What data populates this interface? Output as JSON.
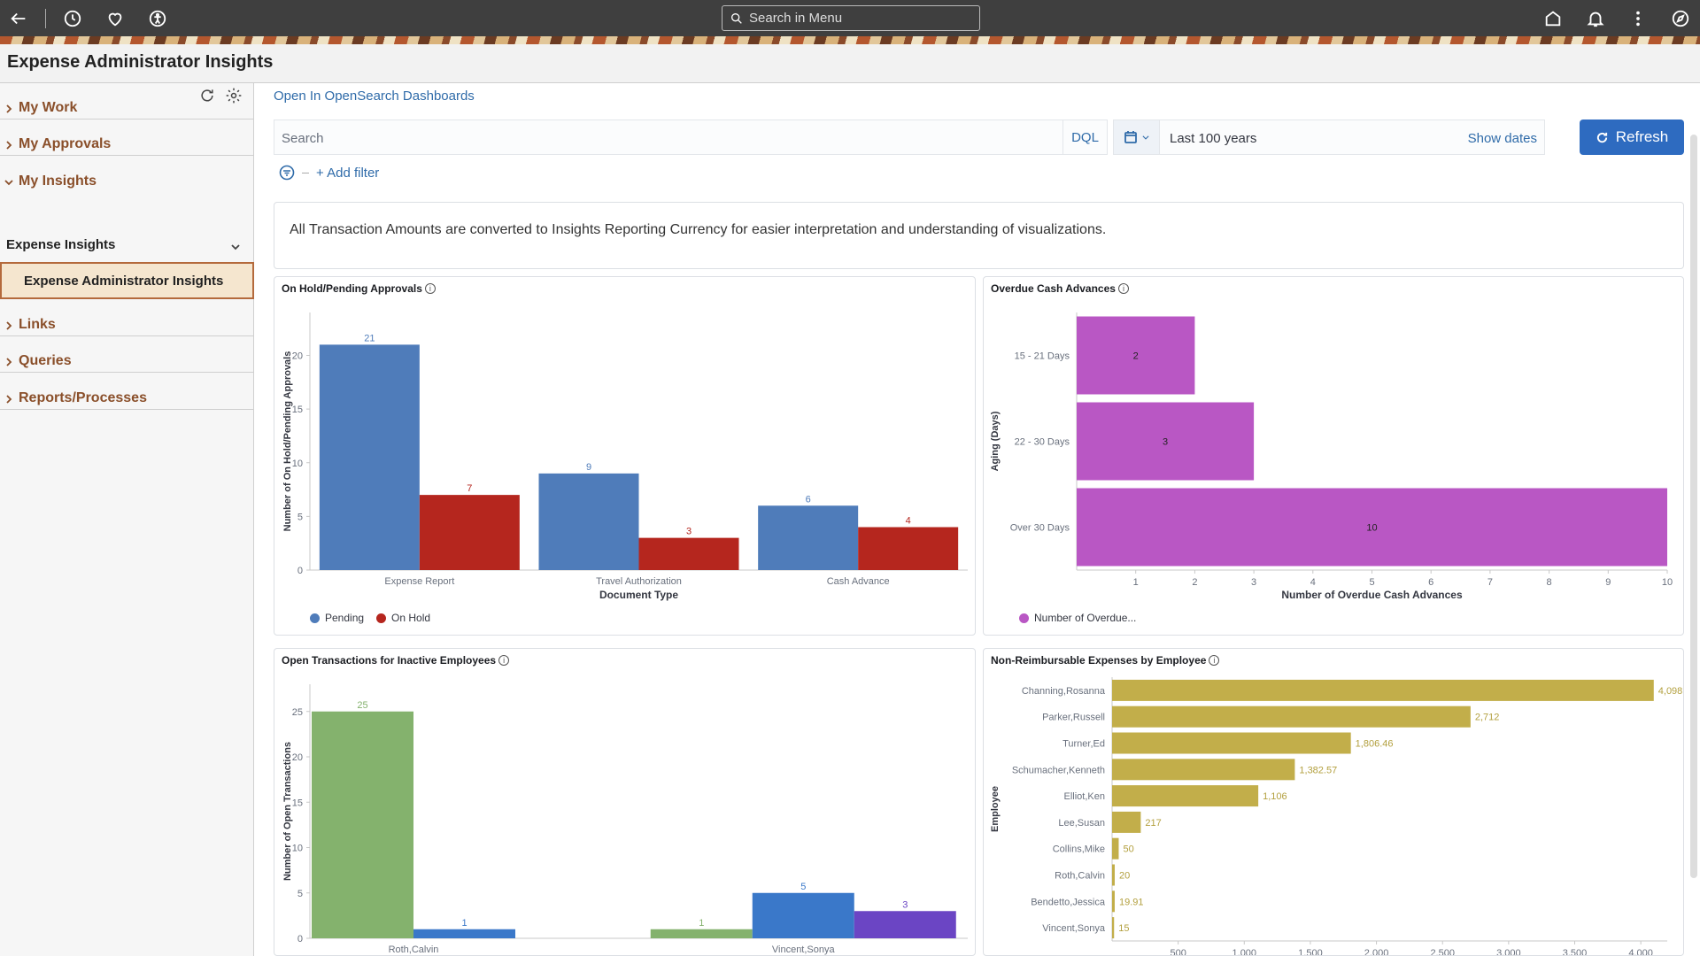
{
  "topbar": {
    "search_placeholder": "Search in Menu",
    "icons": [
      "back-arrow-icon",
      "history-icon",
      "favorites-icon",
      "accessibility-icon",
      "home-icon",
      "notifications-icon",
      "actions-menu-icon",
      "navigator-icon"
    ]
  },
  "page": {
    "title": "Expense Administrator Insights"
  },
  "sidebar": {
    "items": [
      {
        "label": "My Work"
      },
      {
        "label": "My Approvals"
      },
      {
        "label": "My Insights"
      },
      {
        "label": "Links"
      },
      {
        "label": "Queries"
      },
      {
        "label": "Reports/Processes"
      }
    ],
    "group_label": "Expense Insights",
    "active_label": "Expense Administrator Insights"
  },
  "main": {
    "open_link": "Open In OpenSearch Dashboards",
    "search_placeholder": "Search",
    "dql": "DQL",
    "date_range": "Last 100 years",
    "show_dates": "Show dates",
    "refresh": "Refresh",
    "add_filter": "+ Add filter",
    "info_text": "All Transaction Amounts are converted to Insights Reporting Currency for easier interpretation and understanding of visualizations."
  },
  "colors": {
    "accent": "#2e6bc0",
    "pending": "#4f7cba",
    "on_hold": "#b5261e",
    "overdue": "#b957c4",
    "green": "#84b26d",
    "blue": "#3a78c9",
    "purple": "#6b45c4",
    "gold": "#c2ae4a"
  },
  "chart_data": [
    {
      "type": "bar",
      "title": "On Hold/Pending Approvals",
      "xlabel": "Document Type",
      "ylabel": "Number of On Hold/Pending Approvals",
      "categories": [
        "Expense Report",
        "Travel Authorization",
        "Cash Advance"
      ],
      "series": [
        {
          "name": "Pending",
          "values": [
            21,
            9,
            6
          ]
        },
        {
          "name": "On Hold",
          "values": [
            7,
            3,
            4
          ]
        }
      ],
      "yticks": [
        0,
        5,
        10,
        15,
        20
      ],
      "ylim": [
        0,
        24
      ],
      "legend": "bottom-left"
    },
    {
      "type": "bar",
      "orientation": "horizontal",
      "title": "Overdue Cash Advances",
      "xlabel": "Number of Overdue Cash Advances",
      "ylabel": "Aging (Days)",
      "categories": [
        "15 - 21 Days",
        "22 - 30 Days",
        "Over 30 Days"
      ],
      "series": [
        {
          "name": "Number of Overdue...",
          "values": [
            2,
            3,
            10
          ]
        }
      ],
      "xticks": [
        1,
        2,
        3,
        4,
        5,
        6,
        7,
        8,
        9,
        10
      ],
      "xlim": [
        0,
        10
      ],
      "legend": "bottom-left"
    },
    {
      "type": "bar",
      "title": "Open Transactions for Inactive Employees",
      "ylabel": "Number of Open Transactions",
      "categories": [
        "Roth,Calvin",
        "Vincent,Sonya"
      ],
      "category_labels_visible": [
        "Roth,Calvin",
        "Vincent,Sonya"
      ],
      "groups": [
        {
          "category": "Roth,Calvin",
          "bars": [
            {
              "color": "green",
              "value": 25
            },
            {
              "color": "blue",
              "value": 1
            }
          ]
        },
        {
          "category": "Vincent,Sonya",
          "bars": [
            {
              "color": "green",
              "value": 1
            },
            {
              "color": "blue",
              "value": 5
            },
            {
              "color": "purple",
              "value": 3
            }
          ]
        }
      ],
      "yticks": [
        0,
        5,
        10,
        15,
        20,
        25
      ],
      "ylim": [
        0,
        28
      ]
    },
    {
      "type": "bar",
      "orientation": "horizontal",
      "title": "Non-Reimbursable Expenses by Employee",
      "ylabel": "Employee",
      "categories": [
        "Channing,Rosanna",
        "Parker,Russell",
        "Turner,Ed",
        "Schumacher,Kenneth",
        "Elliot,Ken",
        "Lee,Susan",
        "Collins,Mike",
        "Roth,Calvin",
        "Bendetto,Jessica",
        "Vincent,Sonya"
      ],
      "values": [
        4098,
        2712,
        1806.46,
        1382.57,
        1106,
        217,
        50,
        20,
        19.91,
        15
      ],
      "value_labels": [
        "4,098",
        "2,712",
        "1,806.46",
        "1,382.57",
        "1,106",
        "217",
        "50",
        "20",
        "19.91",
        "15"
      ],
      "xticks": [
        "500",
        "1,000",
        "1,500",
        "2,000",
        "2,500",
        "3,000",
        "3,500",
        "4,000"
      ],
      "xlim": [
        0,
        4200
      ]
    }
  ]
}
